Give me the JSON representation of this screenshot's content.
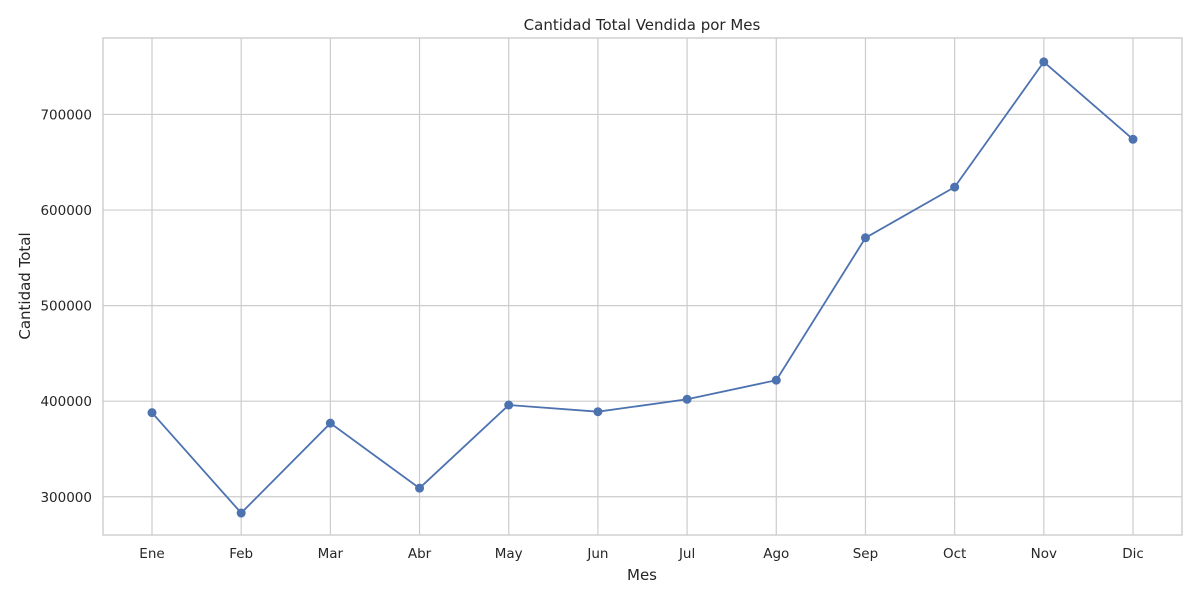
{
  "chart_data": {
    "type": "line",
    "title": "Cantidad Total Vendida por Mes",
    "xlabel": "Mes",
    "ylabel": "Cantidad Total",
    "categories": [
      "Ene",
      "Feb",
      "Mar",
      "Abr",
      "May",
      "Jun",
      "Jul",
      "Ago",
      "Sep",
      "Oct",
      "Nov",
      "Dic"
    ],
    "series": [
      {
        "values": [
          388000,
          283000,
          377000,
          309000,
          396000,
          389000,
          402000,
          422000,
          571000,
          624000,
          755000,
          674000
        ]
      }
    ],
    "ylim": [
      260000,
      780000
    ],
    "yticks": [
      300000,
      400000,
      500000,
      600000,
      700000
    ],
    "ytick_labels": [
      "300000",
      "400000",
      "500000",
      "600000",
      "700000"
    ],
    "grid": true,
    "line_color": "#4c72b0",
    "marker": "circle"
  }
}
